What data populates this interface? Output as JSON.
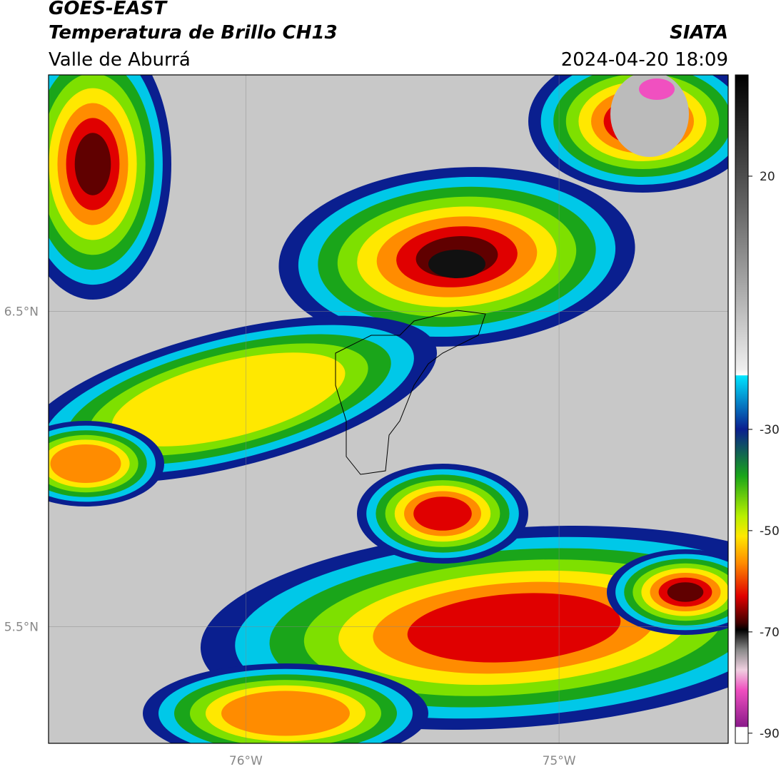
{
  "header": {
    "title": "GOES-EAST",
    "subtitle": "Temperatura de Brillo CH13",
    "region": "Valle de Aburrá",
    "source": "SIATA",
    "datetime": "2024-04-20 18:09"
  },
  "map": {
    "lon_range": [
      -76.63,
      -74.46
    ],
    "lat_range": [
      5.13,
      7.25
    ],
    "lon_ticks": [
      {
        "value": -76,
        "label": "76°W"
      },
      {
        "value": -75,
        "label": "75°W"
      }
    ],
    "lat_ticks": [
      {
        "value": 6.5,
        "label": "6.5°N"
      },
      {
        "value": 5.5,
        "label": "5.5°N"
      }
    ]
  },
  "colorbar": {
    "range": [
      -92,
      40
    ],
    "ticks": [
      20,
      -30,
      -50,
      -70,
      -90
    ]
  }
}
